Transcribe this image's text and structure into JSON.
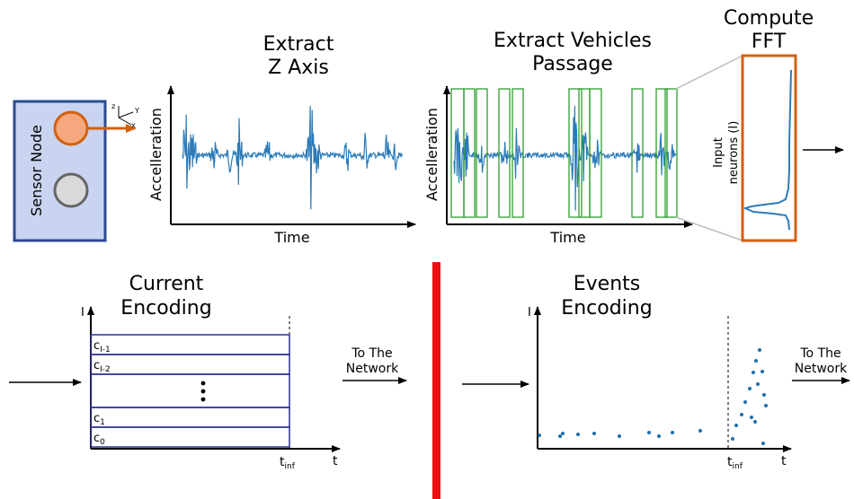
{
  "top": {
    "sensor_node_label": "Sensor Node",
    "axis_z": "z",
    "axis_x": "x",
    "axis_y": "Y",
    "extract_z_title_1": "Extract",
    "extract_z_title_2": "Z Axis",
    "extract_vehicles_title_1": "Extract Vehicles",
    "extract_vehicles_title_2": "Passage",
    "compute_fft_title_1": "Compute",
    "compute_fft_title_2": "FFT",
    "ylabel": "Accelleration",
    "xlabel": "Time",
    "fft_ylabel_1": "Input",
    "fft_ylabel_2": "neurons (I)"
  },
  "bottom_left": {
    "title_1": "Current",
    "title_2": "Encoding",
    "y_axis": "I",
    "x_axis": "t",
    "t_inf": "t",
    "t_inf_sub": "inf",
    "rows": [
      {
        "c": "c",
        "sub": "I-1"
      },
      {
        "c": "c",
        "sub": "I-2"
      },
      {
        "c": "c",
        "sub": "1"
      },
      {
        "c": "c",
        "sub": "0"
      }
    ],
    "output_label_1": "To The",
    "output_label_2": "Network"
  },
  "bottom_right": {
    "title_1": "Events",
    "title_2": "Encoding",
    "y_axis": "I",
    "x_axis": "t",
    "t_inf": "t",
    "t_inf_sub": "inf",
    "output_label_1": "To The",
    "output_label_2": "Network"
  },
  "colors": {
    "signal": "#2b7bb9",
    "orange": "#d4600f",
    "node_box": "#c9d4f0",
    "node_border": "#2b4a8f",
    "window": "#2e9e2e",
    "separator": "#ee1111",
    "table_border": "#2a2e8f",
    "dots": "#1f6fa8"
  }
}
